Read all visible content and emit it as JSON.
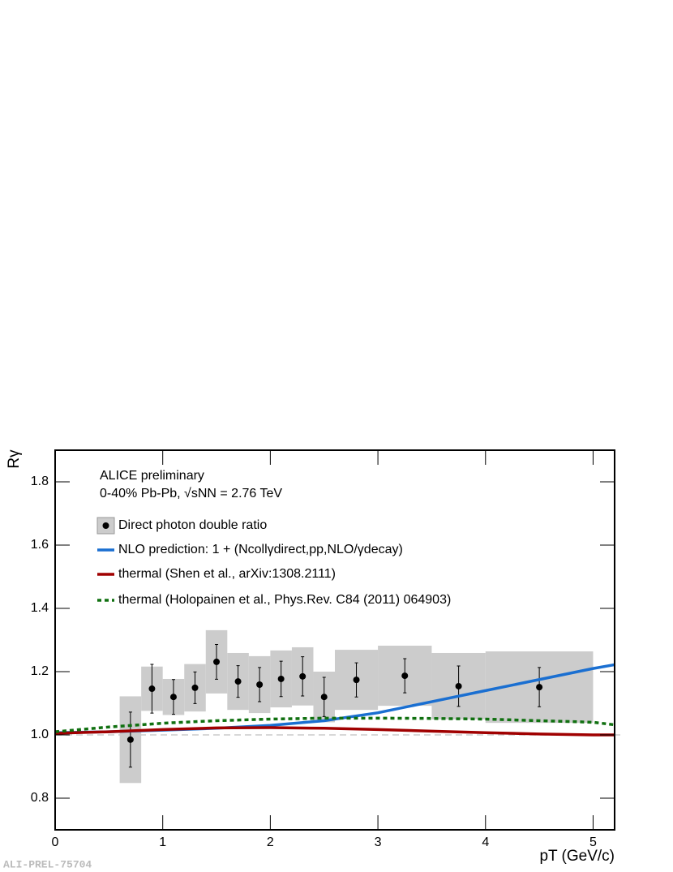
{
  "chart_data": {
    "type": "errorbar",
    "annotations": [
      "ALICE preliminary",
      "0-40% Pb-Pb, √sNN = 2.76 TeV"
    ],
    "xlabel": "pT (GeV/c)",
    "ylabel": "Rγ",
    "watermark": "ALI-PREL-75704",
    "xlim": [
      0,
      5.2
    ],
    "xticks": [
      0,
      1,
      2,
      3,
      4,
      5
    ],
    "ylim": [
      0.7,
      1.9
    ],
    "yticks": [
      {
        "value": 0.8,
        "label": "0.8"
      },
      {
        "value": 1.0,
        "label": "1.0"
      },
      {
        "value": 1.2,
        "label": "1.2"
      },
      {
        "value": 1.4,
        "label": "1.4"
      },
      {
        "value": 1.6,
        "label": "1.6"
      },
      {
        "value": 1.8,
        "label": "1.8"
      }
    ],
    "reference_line": 1,
    "series": [
      {
        "name": "Direct photon double ratio",
        "style": "points",
        "color": "#000000",
        "sys_color": "#cccccc",
        "x": [
          0.7,
          0.9,
          1.1,
          1.3,
          1.5,
          1.7,
          1.9,
          2.1,
          2.3,
          2.5,
          2.8,
          3.25,
          3.75,
          4.5
        ],
        "xerr": [
          0.1,
          0.1,
          0.1,
          0.1,
          0.1,
          0.1,
          0.1,
          0.1,
          0.1,
          0.1,
          0.2,
          0.25,
          0.25,
          0.5
        ],
        "values": [
          0.985,
          1.146,
          1.12,
          1.149,
          1.231,
          1.169,
          1.159,
          1.177,
          1.185,
          1.12,
          1.174,
          1.187,
          1.154,
          1.151
        ],
        "errors": [
          0.087,
          0.077,
          0.055,
          0.05,
          0.055,
          0.05,
          0.054,
          0.056,
          0.062,
          0.062,
          0.054,
          0.054,
          0.064,
          0.062
        ],
        "sys_errors": [
          0.137,
          0.07,
          0.057,
          0.075,
          0.1,
          0.09,
          0.09,
          0.09,
          0.092,
          0.08,
          0.095,
          0.095,
          0.105,
          0.113
        ]
      },
      {
        "name": "NLO prediction: 1 + (Ncollγdirect,pp,NLO/γdecay)",
        "style": "solid",
        "color": "#1a6fd1",
        "x": [
          0,
          0.5,
          1,
          1.5,
          2,
          2.5,
          3,
          3.5,
          4,
          4.5,
          5,
          5.2
        ],
        "values": [
          1.007,
          1.01,
          1.015,
          1.021,
          1.03,
          1.045,
          1.07,
          1.105,
          1.14,
          1.175,
          1.21,
          1.222
        ]
      },
      {
        "name": "thermal (Shen et al., arXiv:1308.2111)",
        "style": "solid",
        "color": "#a00000",
        "x": [
          0,
          0.5,
          1,
          1.5,
          2,
          2.5,
          3,
          3.5,
          4,
          4.5,
          5,
          5.2
        ],
        "values": [
          1.005,
          1.01,
          1.017,
          1.022,
          1.023,
          1.021,
          1.017,
          1.012,
          1.007,
          1.003,
          1.0,
          1.0
        ]
      },
      {
        "name": "thermal (Holopainen et al., Phys.Rev. C84 (2011) 064903)",
        "style": "dotted",
        "color": "#107010",
        "x": [
          0,
          0.5,
          1,
          1.5,
          2,
          2.5,
          3,
          3.5,
          4,
          4.5,
          5,
          5.2
        ],
        "values": [
          1.01,
          1.025,
          1.037,
          1.045,
          1.05,
          1.053,
          1.053,
          1.052,
          1.05,
          1.045,
          1.04,
          1.032
        ]
      }
    ]
  }
}
